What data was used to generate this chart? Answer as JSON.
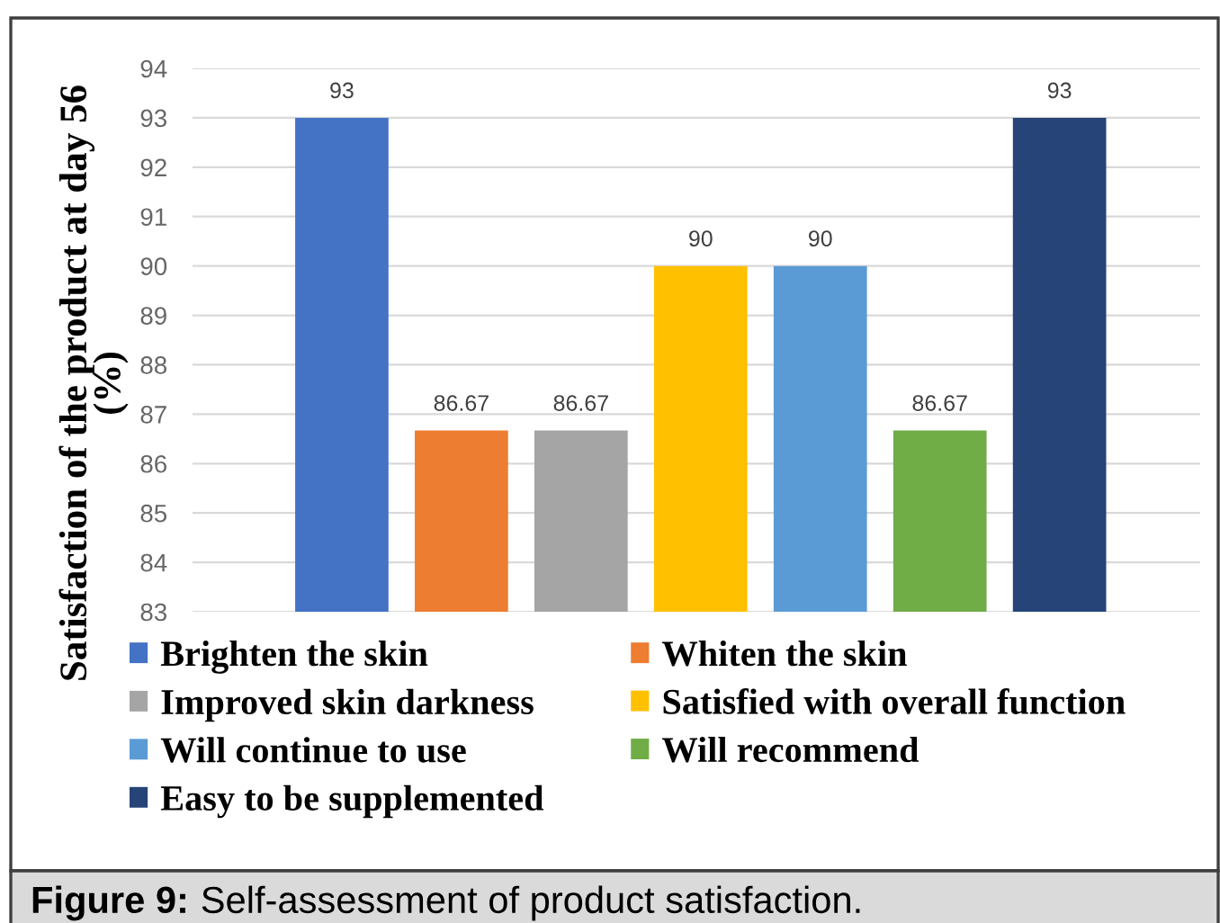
{
  "chart_data": {
    "type": "bar",
    "ylabel": "Satisfaction of the product at day 56 (%)",
    "categories": [
      null
    ],
    "series": [
      {
        "name": "Brighten the skin",
        "color": "#4472c4",
        "values": [
          93
        ]
      },
      {
        "name": "Whiten the skin",
        "color": "#ed7d31",
        "values": [
          86.67
        ]
      },
      {
        "name": "Improved skin darkness",
        "color": "#a5a5a5",
        "values": [
          86.67
        ]
      },
      {
        "name": "Satisfied with overall function",
        "color": "#ffc000",
        "values": [
          90
        ]
      },
      {
        "name": "Will continue to use",
        "color": "#5b9bd5",
        "values": [
          90
        ]
      },
      {
        "name": "Will recommend",
        "color": "#70ad47",
        "values": [
          86.67
        ]
      },
      {
        "name": "Easy to be supplemented",
        "color": "#264478",
        "values": [
          93
        ]
      }
    ],
    "ylim": [
      83,
      94
    ],
    "yticks": [
      83,
      84,
      85,
      86,
      87,
      88,
      89,
      90,
      91,
      92,
      93,
      94
    ],
    "grid": "y",
    "legend": "bottom",
    "tick_labels": "y",
    "data_labels": true,
    "annotations": [
      "Figure 9: Self-assessment of product satisfaction."
    ]
  }
}
